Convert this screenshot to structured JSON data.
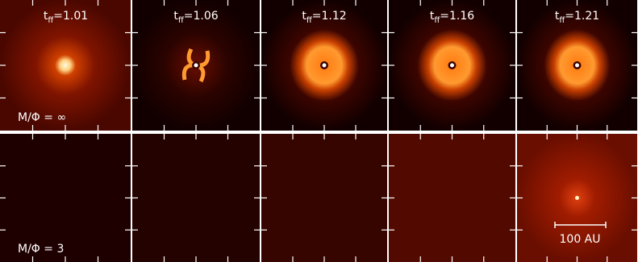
{
  "columns": [
    {
      "symbol": "t",
      "subscript": "ff",
      "value": "=1.01"
    },
    {
      "symbol": "t",
      "subscript": "ff",
      "value": "=1.06"
    },
    {
      "symbol": "t",
      "subscript": "ff",
      "value": "=1.12"
    },
    {
      "symbol": "t",
      "subscript": "ff",
      "value": "=1.16"
    },
    {
      "symbol": "t",
      "subscript": "ff",
      "value": "=1.21"
    }
  ],
  "rows": [
    {
      "label": "M/Φ = ∞"
    },
    {
      "label": "M/Φ = 3"
    }
  ],
  "scale_bar": "100 AU"
}
